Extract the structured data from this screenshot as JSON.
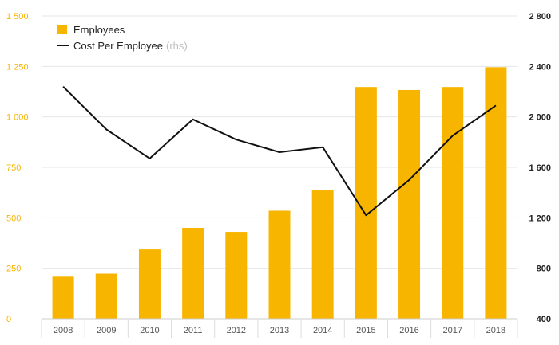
{
  "chart_data": {
    "type": "bar",
    "categories": [
      "2008",
      "2009",
      "2010",
      "2011",
      "2012",
      "2013",
      "2014",
      "2015",
      "2016",
      "2017",
      "2018"
    ],
    "series": [
      {
        "name": "Employees",
        "type": "bar",
        "axis": "left",
        "color": "#F7B500",
        "values": [
          208,
          223,
          343,
          450,
          430,
          535,
          637,
          1148,
          1133,
          1148,
          1246
        ]
      },
      {
        "name": "Cost Per Employee",
        "legend_suffix": "(rhs)",
        "type": "line",
        "axis": "right",
        "color": "#111111",
        "values": [
          2240,
          1900,
          1670,
          1980,
          1820,
          1720,
          1760,
          1220,
          1500,
          1850,
          2090
        ]
      }
    ],
    "left_axis": {
      "ylim": [
        0,
        1500
      ],
      "ticks": [
        0,
        250,
        500,
        750,
        1000,
        1250,
        1500
      ],
      "tick_labels": [
        "0",
        "250",
        "500",
        "750",
        "1 000",
        "1 250",
        "1 500"
      ],
      "color": "#F7B500"
    },
    "right_axis": {
      "ylim": [
        400,
        2800
      ],
      "ticks": [
        400,
        800,
        1200,
        1600,
        2000,
        2400,
        2800
      ],
      "tick_labels": [
        "400",
        "800",
        "1 200",
        "1 600",
        "2 000",
        "2 400",
        "2 800"
      ]
    },
    "grid": true,
    "legend_position": "top-left"
  }
}
